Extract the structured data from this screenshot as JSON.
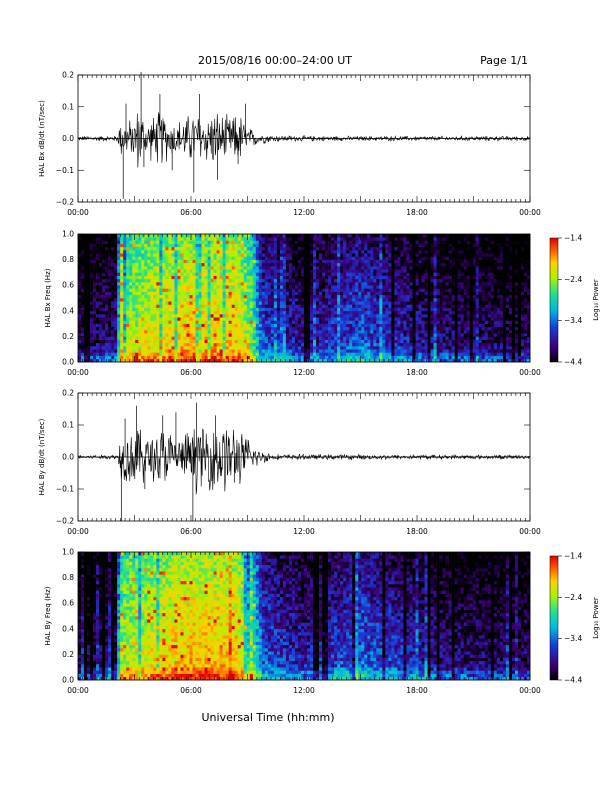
{
  "header": {
    "title": "2015/08/16  00:00–24:00 UT",
    "page_label": "Page 1/1"
  },
  "footer": {
    "xlabel": "Universal Time (hh:mm)"
  },
  "colors": {
    "trace": "#000000",
    "colormap": [
      "#000000",
      "#3a0078",
      "#1a3ad8",
      "#00b8e0",
      "#20e090",
      "#b0f000",
      "#ffd000",
      "#ff5a00",
      "#e00000"
    ]
  },
  "chart_data": [
    {
      "type": "line",
      "ylabel": "HAL Bx dB/dt (nT/sec)",
      "ylim": [
        -0.2,
        0.2
      ],
      "yticks": [
        "0.2",
        "0.1",
        "0.0",
        "−0.1",
        "−0.2"
      ],
      "xlim_hours": [
        0,
        24
      ],
      "xticks": [
        "00:00",
        "06:00",
        "12:00",
        "18:00",
        "00:00"
      ],
      "envelope": [
        {
          "t": 0.0,
          "amp": 0.006
        },
        {
          "t": 2.1,
          "amp": 0.007
        },
        {
          "t": 2.2,
          "amp": 0.045
        },
        {
          "t": 3.0,
          "amp": 0.05
        },
        {
          "t": 3.2,
          "amp": 0.09
        },
        {
          "t": 3.6,
          "amp": 0.045
        },
        {
          "t": 4.0,
          "amp": 0.06
        },
        {
          "t": 4.4,
          "amp": 0.075
        },
        {
          "t": 5.0,
          "amp": 0.045
        },
        {
          "t": 5.4,
          "amp": 0.05
        },
        {
          "t": 6.2,
          "amp": 0.07
        },
        {
          "t": 6.7,
          "amp": 0.06
        },
        {
          "t": 7.2,
          "amp": 0.075
        },
        {
          "t": 8.0,
          "amp": 0.055
        },
        {
          "t": 8.6,
          "amp": 0.065
        },
        {
          "t": 9.0,
          "amp": 0.03
        },
        {
          "t": 9.6,
          "amp": 0.015
        },
        {
          "t": 10.5,
          "amp": 0.008
        },
        {
          "t": 14.0,
          "amp": 0.006
        },
        {
          "t": 24.0,
          "amp": 0.006
        }
      ],
      "spikes": [
        {
          "t": 2.4,
          "v": -0.19
        },
        {
          "t": 2.55,
          "v": 0.11
        },
        {
          "t": 3.35,
          "v": 0.21
        },
        {
          "t": 3.5,
          "v": -0.09
        },
        {
          "t": 4.35,
          "v": 0.14
        },
        {
          "t": 5.0,
          "v": -0.1
        },
        {
          "t": 6.15,
          "v": -0.17
        },
        {
          "t": 6.45,
          "v": 0.14
        },
        {
          "t": 7.4,
          "v": -0.13
        },
        {
          "t": 8.5,
          "v": -0.08
        },
        {
          "t": 8.9,
          "v": 0.11
        }
      ]
    },
    {
      "type": "heatmap",
      "ylabel": "HAL Bx Freq (Hz)",
      "ylim": [
        0.0,
        1.0
      ],
      "yticks": [
        "1.0",
        "0.8",
        "0.6",
        "0.4",
        "0.2",
        "0.0"
      ],
      "xlim_hours": [
        0,
        24
      ],
      "xticks": [
        "00:00",
        "06:00",
        "12:00",
        "18:00",
        "00:00"
      ],
      "colorbar": {
        "label": "Log₁₀ Power",
        "ticks": [
          "−1.4",
          "−2.4",
          "−3.4",
          "−4.4"
        ],
        "range": [
          -4.4,
          -1.4
        ]
      },
      "background": [
        {
          "t": 0.0,
          "level": 0.12
        },
        {
          "t": 2.1,
          "level": 0.16
        },
        {
          "t": 2.2,
          "level": 0.62
        },
        {
          "t": 4.0,
          "level": 0.72
        },
        {
          "t": 6.0,
          "level": 0.78
        },
        {
          "t": 8.5,
          "level": 0.76
        },
        {
          "t": 9.2,
          "level": 0.6
        },
        {
          "t": 9.8,
          "level": 0.28
        },
        {
          "t": 12.0,
          "level": 0.18
        },
        {
          "t": 15.0,
          "level": 0.3
        },
        {
          "t": 17.0,
          "level": 0.22
        },
        {
          "t": 19.5,
          "level": 0.15
        },
        {
          "t": 24.0,
          "level": 0.12
        }
      ]
    },
    {
      "type": "line",
      "ylabel": "HAL By dB/dt (nT/sec)",
      "ylim": [
        -0.2,
        0.2
      ],
      "yticks": [
        "0.2",
        "0.1",
        "0.0",
        "−0.1",
        "−0.2"
      ],
      "xlim_hours": [
        0,
        24
      ],
      "xticks": [
        "00:00",
        "06:00",
        "12:00",
        "18:00",
        "00:00"
      ],
      "envelope": [
        {
          "t": 0.0,
          "amp": 0.005
        },
        {
          "t": 2.1,
          "amp": 0.006
        },
        {
          "t": 2.2,
          "amp": 0.05
        },
        {
          "t": 2.6,
          "amp": 0.07
        },
        {
          "t": 3.2,
          "amp": 0.08
        },
        {
          "t": 3.8,
          "amp": 0.055
        },
        {
          "t": 4.4,
          "amp": 0.085
        },
        {
          "t": 5.0,
          "amp": 0.06
        },
        {
          "t": 5.5,
          "amp": 0.05
        },
        {
          "t": 6.2,
          "amp": 0.085
        },
        {
          "t": 6.8,
          "amp": 0.075
        },
        {
          "t": 7.4,
          "amp": 0.1
        },
        {
          "t": 8.2,
          "amp": 0.085
        },
        {
          "t": 9.0,
          "amp": 0.05
        },
        {
          "t": 9.6,
          "amp": 0.02
        },
        {
          "t": 10.4,
          "amp": 0.007
        },
        {
          "t": 24.0,
          "amp": 0.005
        }
      ],
      "spikes": [
        {
          "t": 2.3,
          "v": -0.2
        },
        {
          "t": 2.5,
          "v": 0.12
        },
        {
          "t": 3.1,
          "v": 0.16
        },
        {
          "t": 3.55,
          "v": -0.1
        },
        {
          "t": 4.5,
          "v": 0.13
        },
        {
          "t": 5.2,
          "v": 0.14
        },
        {
          "t": 6.1,
          "v": -0.2
        },
        {
          "t": 6.3,
          "v": 0.17
        },
        {
          "t": 7.3,
          "v": 0.13
        },
        {
          "t": 8.3,
          "v": -0.08
        }
      ]
    },
    {
      "type": "heatmap",
      "ylabel": "HAL By Freq (Hz)",
      "ylim": [
        0.0,
        1.0
      ],
      "yticks": [
        "1.0",
        "0.8",
        "0.6",
        "0.4",
        "0.2",
        "0.0"
      ],
      "xlim_hours": [
        0,
        24
      ],
      "xticks": [
        "00:00",
        "06:00",
        "12:00",
        "18:00",
        "00:00"
      ],
      "colorbar": {
        "label": "Log₁₀ Power",
        "ticks": [
          "−1.4",
          "−2.4",
          "−3.4",
          "−4.4"
        ],
        "range": [
          -4.4,
          -1.4
        ]
      },
      "background": [
        {
          "t": 0.0,
          "level": 0.1
        },
        {
          "t": 2.1,
          "level": 0.14
        },
        {
          "t": 2.2,
          "level": 0.64
        },
        {
          "t": 4.0,
          "level": 0.74
        },
        {
          "t": 6.0,
          "level": 0.8
        },
        {
          "t": 8.5,
          "level": 0.78
        },
        {
          "t": 9.2,
          "level": 0.62
        },
        {
          "t": 9.8,
          "level": 0.3
        },
        {
          "t": 12.0,
          "level": 0.2
        },
        {
          "t": 15.0,
          "level": 0.32
        },
        {
          "t": 17.0,
          "level": 0.24
        },
        {
          "t": 19.5,
          "level": 0.16
        },
        {
          "t": 24.0,
          "level": 0.12
        }
      ]
    }
  ]
}
